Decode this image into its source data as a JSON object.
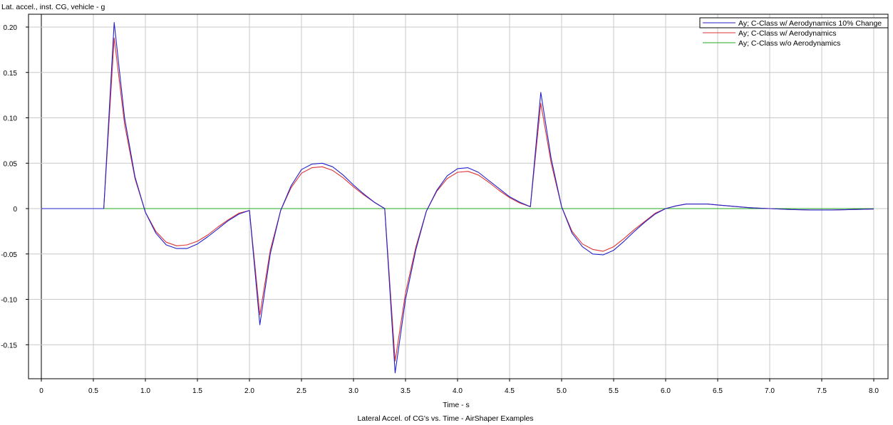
{
  "chart_data": {
    "type": "line",
    "title": "Lateral Accel. of CG's vs. Time - AirShaper Examples",
    "ylabel": "Lat. accel., inst. CG, vehicle - g",
    "xlabel": "Time - s",
    "xlim": [
      0,
      8
    ],
    "ylim": [
      -0.19,
      0.21
    ],
    "grid": true,
    "legend_position": "top-right",
    "x_ticks": [
      0,
      0.5,
      1.0,
      1.5,
      2.0,
      2.5,
      3.0,
      3.5,
      4.0,
      4.5,
      5.0,
      5.5,
      6.0,
      6.5,
      7.0,
      7.5,
      8.0
    ],
    "x_tick_labels": [
      "0",
      "0.5",
      "1.0",
      "1.5",
      "2.0",
      "2.5",
      "3.0",
      "3.5",
      "4.0",
      "4.5",
      "5.0",
      "5.5",
      "6.0",
      "6.5",
      "7.0",
      "7.5",
      "8.0"
    ],
    "y_ticks": [
      0.2,
      0.15,
      0.1,
      0.05,
      0,
      -0.05,
      -0.1,
      -0.15
    ],
    "y_tick_labels": [
      "0.20",
      "0.15",
      "0.10",
      "0.05",
      "0",
      "-0.05",
      "-0.10",
      "-0.15"
    ],
    "series": [
      {
        "name": "Ay; C-Class w/ Aerodynamics 10% Change",
        "color": "#2222cc",
        "x": [
          0,
          0.6,
          0.7,
          0.8,
          0.9,
          1.0,
          1.1,
          1.2,
          1.3,
          1.4,
          1.5,
          1.6,
          1.7,
          1.8,
          1.9,
          2.0,
          2.1,
          2.2,
          2.3,
          2.4,
          2.5,
          2.6,
          2.7,
          2.8,
          2.9,
          3.0,
          3.1,
          3.2,
          3.3,
          3.4,
          3.5,
          3.6,
          3.7,
          3.8,
          3.9,
          4.0,
          4.1,
          4.2,
          4.3,
          4.4,
          4.5,
          4.6,
          4.7,
          4.8,
          4.9,
          5.0,
          5.1,
          5.2,
          5.3,
          5.4,
          5.5,
          5.6,
          5.7,
          5.8,
          5.9,
          6.0,
          6.1,
          6.2,
          6.3,
          6.4,
          6.5,
          6.6,
          6.7,
          6.8,
          6.9,
          7.0,
          7.2,
          7.4,
          7.6,
          7.8,
          8.0
        ],
        "y": [
          0,
          0,
          0.205,
          0.1,
          0.035,
          -0.004,
          -0.027,
          -0.04,
          -0.044,
          -0.044,
          -0.039,
          -0.031,
          -0.022,
          -0.013,
          -0.006,
          -0.002,
          -0.128,
          -0.05,
          -0.002,
          0.025,
          0.043,
          0.049,
          0.05,
          0.046,
          0.037,
          0.026,
          0.016,
          0.007,
          0,
          -0.181,
          -0.1,
          -0.045,
          -0.003,
          0.02,
          0.036,
          0.044,
          0.045,
          0.04,
          0.031,
          0.022,
          0.013,
          0.007,
          0.002,
          0.128,
          0.055,
          0.002,
          -0.027,
          -0.042,
          -0.05,
          -0.051,
          -0.046,
          -0.036,
          -0.025,
          -0.015,
          -0.006,
          0,
          0.003,
          0.005,
          0.005,
          0.005,
          0.004,
          0.003,
          0.002,
          0.001,
          0.0005,
          0,
          -0.001,
          -0.0015,
          -0.0015,
          -0.001,
          -0.0005
        ]
      },
      {
        "name": "Ay; C-Class w/ Aerodynamics",
        "color": "#dd3333",
        "x": [
          0,
          0.6,
          0.7,
          0.8,
          0.9,
          1.0,
          1.1,
          1.2,
          1.3,
          1.4,
          1.5,
          1.6,
          1.7,
          1.8,
          1.9,
          2.0,
          2.1,
          2.2,
          2.3,
          2.4,
          2.5,
          2.6,
          2.7,
          2.8,
          2.9,
          3.0,
          3.1,
          3.2,
          3.3,
          3.4,
          3.5,
          3.6,
          3.7,
          3.8,
          3.9,
          4.0,
          4.1,
          4.2,
          4.3,
          4.4,
          4.5,
          4.6,
          4.7,
          4.8,
          4.9,
          5.0,
          5.1,
          5.2,
          5.3,
          5.4,
          5.5,
          5.6,
          5.7,
          5.8,
          5.9,
          6.0,
          6.1,
          6.2,
          6.3,
          6.4,
          6.5,
          6.6,
          6.7,
          6.8,
          6.9,
          7.0,
          7.2,
          7.4,
          7.6,
          7.8,
          8.0
        ],
        "y": [
          0,
          0,
          0.188,
          0.093,
          0.033,
          -0.004,
          -0.025,
          -0.037,
          -0.041,
          -0.04,
          -0.036,
          -0.029,
          -0.02,
          -0.012,
          -0.005,
          -0.002,
          -0.117,
          -0.046,
          -0.002,
          0.023,
          0.039,
          0.045,
          0.046,
          0.042,
          0.034,
          0.024,
          0.015,
          0.007,
          0,
          -0.168,
          -0.093,
          -0.042,
          -0.003,
          0.019,
          0.033,
          0.04,
          0.041,
          0.037,
          0.029,
          0.02,
          0.012,
          0.006,
          0.002,
          0.116,
          0.05,
          0.002,
          -0.025,
          -0.039,
          -0.045,
          -0.047,
          -0.042,
          -0.033,
          -0.023,
          -0.014,
          -0.005,
          0,
          0.003,
          0.005,
          0.005,
          0.005,
          0.004,
          0.003,
          0.002,
          0.001,
          0.0005,
          0,
          -0.001,
          -0.0015,
          -0.0015,
          -0.001,
          -0.0005
        ]
      },
      {
        "name": "Ay; C-Class w/o Aerodynamics",
        "color": "#22aa22",
        "x": [
          0,
          8
        ],
        "y": [
          0,
          0
        ]
      }
    ]
  }
}
